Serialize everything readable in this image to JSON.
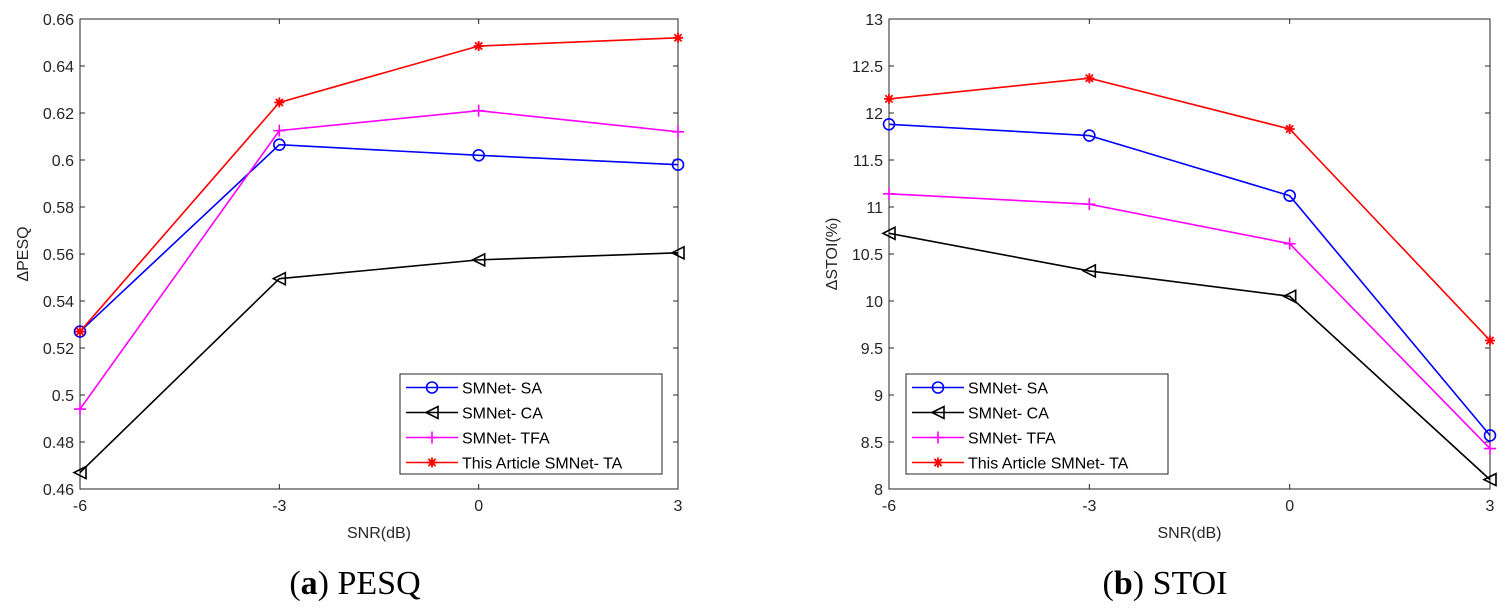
{
  "chart_data": [
    {
      "id": "pesq",
      "type": "line",
      "caption_letter": "a",
      "caption_text": "PESQ",
      "xlabel": "SNR(dB)",
      "ylabel": "ΔPESQ",
      "x": [
        -6,
        -3,
        0,
        3
      ],
      "xticks": [
        "-6",
        "-3",
        "0",
        "3"
      ],
      "xlim": [
        -6,
        3
      ],
      "ylim": [
        0.46,
        0.66
      ],
      "yticks": [
        "0.46",
        "0.48",
        "0.5",
        "0.52",
        "0.54",
        "0.56",
        "0.58",
        "0.6",
        "0.62",
        "0.64",
        "0.66"
      ],
      "legend_position": "bottom-right",
      "series": [
        {
          "name": "SMNet- SA",
          "color": "#0000ff",
          "marker": "circle",
          "values": [
            0.527,
            0.6065,
            0.602,
            0.598
          ]
        },
        {
          "name": "SMNet- CA",
          "color": "#000000",
          "marker": "triangle-left",
          "values": [
            0.467,
            0.5495,
            0.5575,
            0.5605
          ]
        },
        {
          "name": "SMNet- TFA",
          "color": "#ff00ff",
          "marker": "plus",
          "values": [
            0.494,
            0.6125,
            0.621,
            0.612
          ]
        },
        {
          "name": "This Article SMNet- TA",
          "color": "#ff0000",
          "marker": "asterisk",
          "values": [
            0.527,
            0.6245,
            0.6485,
            0.652
          ]
        }
      ]
    },
    {
      "id": "stoi",
      "type": "line",
      "caption_letter": "b",
      "caption_text": "STOI",
      "xlabel": "SNR(dB)",
      "ylabel": "ΔSTOI(%)",
      "x": [
        -6,
        -3,
        0,
        3
      ],
      "xticks": [
        "-6",
        "-3",
        "0",
        "3"
      ],
      "xlim": [
        -6,
        3
      ],
      "ylim": [
        8,
        13
      ],
      "yticks": [
        "8",
        "8.5",
        "9",
        "9.5",
        "10",
        "10.5",
        "11",
        "11.5",
        "12",
        "12.5",
        "13"
      ],
      "legend_position": "bottom-left",
      "series": [
        {
          "name": "SMNet- SA",
          "color": "#0000ff",
          "marker": "circle",
          "values": [
            11.88,
            11.76,
            11.12,
            8.57
          ]
        },
        {
          "name": "SMNet- CA",
          "color": "#000000",
          "marker": "triangle-left",
          "values": [
            10.72,
            10.32,
            10.05,
            8.1
          ]
        },
        {
          "name": "SMNet- TFA",
          "color": "#ff00ff",
          "marker": "plus",
          "values": [
            11.14,
            11.03,
            10.61,
            8.43
          ]
        },
        {
          "name": "This Article SMNet- TA",
          "color": "#ff0000",
          "marker": "asterisk",
          "values": [
            12.15,
            12.37,
            11.83,
            9.58
          ]
        }
      ]
    }
  ]
}
